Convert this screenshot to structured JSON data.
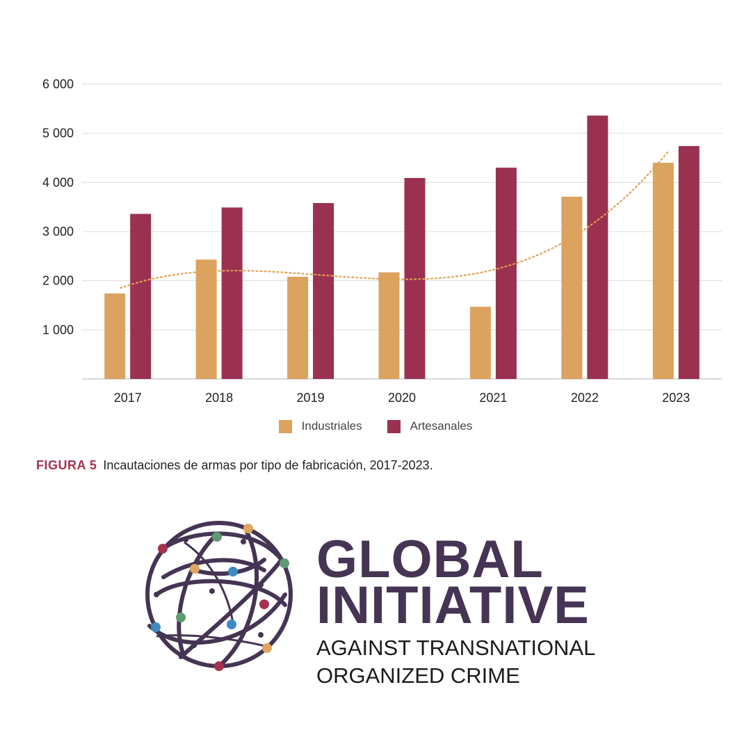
{
  "chart_data": {
    "type": "bar",
    "categories": [
      "2017",
      "2018",
      "2019",
      "2020",
      "2021",
      "2022",
      "2023"
    ],
    "series": [
      {
        "name": "Industriales",
        "color": "#dba35f",
        "values": [
          1740,
          2430,
          2080,
          2170,
          1470,
          3710,
          4400
        ]
      },
      {
        "name": "Artesanales",
        "color": "#9b3150",
        "values": [
          3360,
          3490,
          3580,
          4090,
          4300,
          5360,
          4740
        ]
      }
    ],
    "trendline": {
      "series": "Industriales",
      "style": "dotted",
      "color": "#e0a050"
    },
    "y_ticks": [
      "1 000",
      "2 000",
      "3 000",
      "4 000",
      "5 000",
      "6 000"
    ],
    "y_tick_values": [
      1000,
      2000,
      3000,
      4000,
      5000,
      6000
    ],
    "ylim": [
      0,
      6000
    ],
    "grid": true,
    "legend_position": "bottom-center"
  },
  "caption": {
    "label": "FIGURA 5",
    "text": "Incautaciones de armas por tipo de fabricación, 2017-2023."
  },
  "logo": {
    "line1": "GLOBAL",
    "line2": "INITIATIVE",
    "line3": "AGAINST TRANSNATIONAL",
    "line4": "ORGANIZED CRIME",
    "color": "#453453"
  }
}
